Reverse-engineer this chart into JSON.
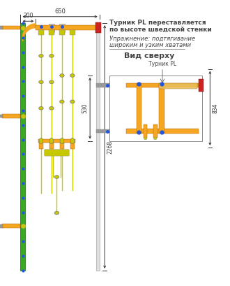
{
  "bg_color": "#ffffff",
  "green_color": "#3aaa20",
  "orange_color": "#f5a623",
  "yellow_green": "#c8c800",
  "red_color": "#cc2222",
  "blue_color": "#2255dd",
  "gray_color": "#999999",
  "dim_color": "#444444",
  "text1": "Турник PL переставляется",
  "text2": "по высоте шведской стенки",
  "text3": "Упражнение: подтягивание",
  "text4": "широким и узким хватами",
  "text_top": "Вид сверху",
  "label_turnik": "Турник PL",
  "dim_650": "650",
  "dim_200": "200",
  "dim_2268": "2268",
  "dim_530": "530",
  "dim_834": "834"
}
